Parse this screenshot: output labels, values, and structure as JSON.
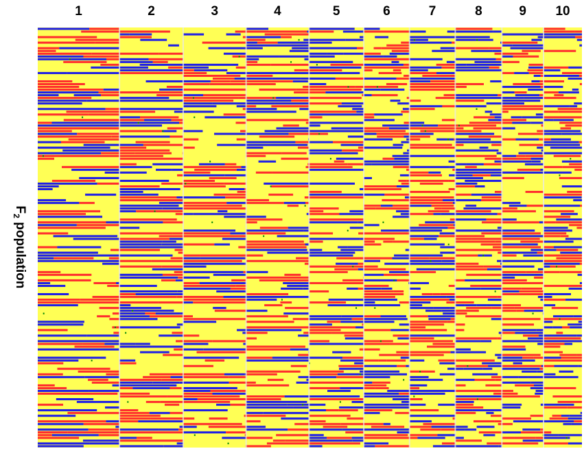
{
  "chart_data": {
    "type": "heatmap",
    "title": "",
    "xlabel": "",
    "ylabel_main": "F",
    "ylabel_subscript": "2",
    "ylabel_rest": " population",
    "chromosomes": [
      "1",
      "2",
      "3",
      "4",
      "5",
      "6",
      "7",
      "8",
      "9",
      "10"
    ],
    "chromosome_relative_length": [
      1.0,
      0.78,
      0.77,
      0.77,
      0.67,
      0.56,
      0.56,
      0.57,
      0.51,
      0.47
    ],
    "legend": [],
    "genotype_colors": {
      "parent_a": "#ff2d2d",
      "heterozygous": "#ffff55",
      "parent_b": "#1f1fe6",
      "divider": "#e8e8e8",
      "missing": "#0a8a0a"
    },
    "genotype_frequencies": {
      "heterozygous": 0.5,
      "parent_a": 0.25,
      "parent_b": 0.25
    },
    "individuals_shown": 152
  }
}
